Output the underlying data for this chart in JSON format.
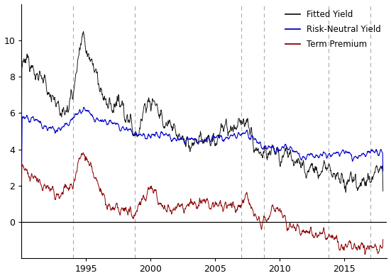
{
  "title": "",
  "xlabel": "",
  "ylabel": "",
  "ylim": [
    -2,
    12
  ],
  "yticks": [
    0,
    2,
    4,
    6,
    8,
    10
  ],
  "xlim": [
    1990.0,
    2018.3
  ],
  "xticks": [
    1995,
    2000,
    2005,
    2010,
    2015
  ],
  "vlines": [
    1994.0,
    1998.75,
    2007.0,
    2008.75,
    2013.75,
    2017.0
  ],
  "fitted_color": "#1a1a1a",
  "rn_color": "#0000cc",
  "tp_color": "#8b0000",
  "hline_color": "#000000",
  "background_color": "#ffffff",
  "legend_labels": [
    "Fitted Yield",
    "Risk-Neutral Yield",
    "Term Premium"
  ],
  "legend_colors": [
    "#1a1a1a",
    "#0000cc",
    "#8b0000"
  ],
  "noise_fitted": 0.18,
  "noise_rn": 0.08,
  "noise_tp": 0.12
}
